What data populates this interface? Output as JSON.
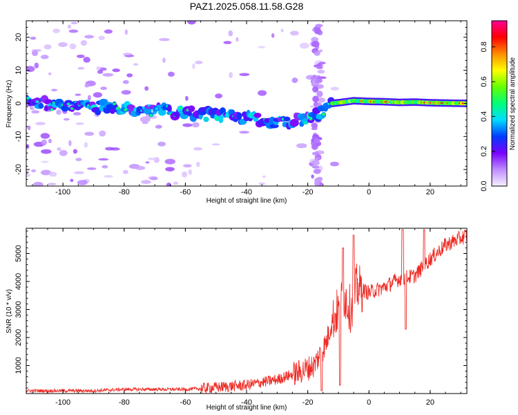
{
  "title": "PAZ1.2025.058.11.58.G28",
  "colors": {
    "snr_line": "#ee2a24",
    "frame": "#000000"
  },
  "chart_data": [
    {
      "type": "heatmap",
      "name": "spectrogram",
      "xlabel": "Height of straight line (km)",
      "ylabel": "Frequency (Hz)",
      "xlim": [
        -112,
        32
      ],
      "ylim": [
        -25,
        25
      ],
      "xticks": [
        -100,
        -80,
        -60,
        -40,
        -20,
        0,
        20
      ],
      "yticks": [
        -20,
        -10,
        0,
        10,
        20
      ],
      "ridge": {
        "x": [
          -112,
          -100,
          -90,
          -80,
          -70,
          -60,
          -50,
          -40,
          -30,
          -20,
          -16,
          -12,
          -10,
          -5,
          0,
          5,
          10,
          15,
          20,
          25,
          32
        ],
        "freq": [
          0.5,
          -0.5,
          -1,
          -1.5,
          -2,
          -3,
          -3.5,
          -4.5,
          -5.5,
          -5,
          -3,
          0,
          0.2,
          0.8,
          0.6,
          0.5,
          0.3,
          0.4,
          0.2,
          0.1,
          0
        ]
      },
      "colorbar": {
        "label": "Normalized spectral amplitude",
        "ticks": [
          "0.0",
          "0.2",
          "0.4",
          "0.6",
          "0.8"
        ],
        "range": [
          0,
          0.95
        ]
      }
    },
    {
      "type": "line",
      "name": "snr",
      "xlabel": "Height of straight line (km)",
      "ylabel": "SNR (10 * v/v)",
      "xlim": [
        -112,
        32
      ],
      "ylim": [
        0,
        5900
      ],
      "xticks": [
        -100,
        -80,
        -60,
        -40,
        -20,
        0,
        20
      ],
      "yticks": [
        1000,
        2000,
        3000,
        4000,
        5000
      ],
      "trend": {
        "x": [
          -112,
          -90,
          -80,
          -60,
          -55,
          -40,
          -30,
          -22,
          -18,
          -14,
          -12,
          -10,
          -8,
          -6,
          -4,
          0,
          5,
          10,
          15,
          20,
          25,
          32
        ],
        "y": [
          100,
          100,
          150,
          150,
          180,
          300,
          500,
          800,
          1000,
          1800,
          2600,
          3000,
          3500,
          3000,
          3800,
          3600,
          3800,
          4100,
          4200,
          4800,
          5300,
          5650
        ]
      },
      "peaks": [
        {
          "x": -9.5,
          "y": 5500
        },
        {
          "x": -8.5,
          "y": 5200
        },
        {
          "x": -5,
          "y": 5650
        },
        {
          "x": 11,
          "y": 5850
        },
        {
          "x": 18,
          "y": 5850
        }
      ],
      "dips": [
        {
          "x": -15.5,
          "y": 100
        },
        {
          "x": -9.5,
          "y": 300
        },
        {
          "x": 12,
          "y": 2300
        }
      ]
    }
  ]
}
